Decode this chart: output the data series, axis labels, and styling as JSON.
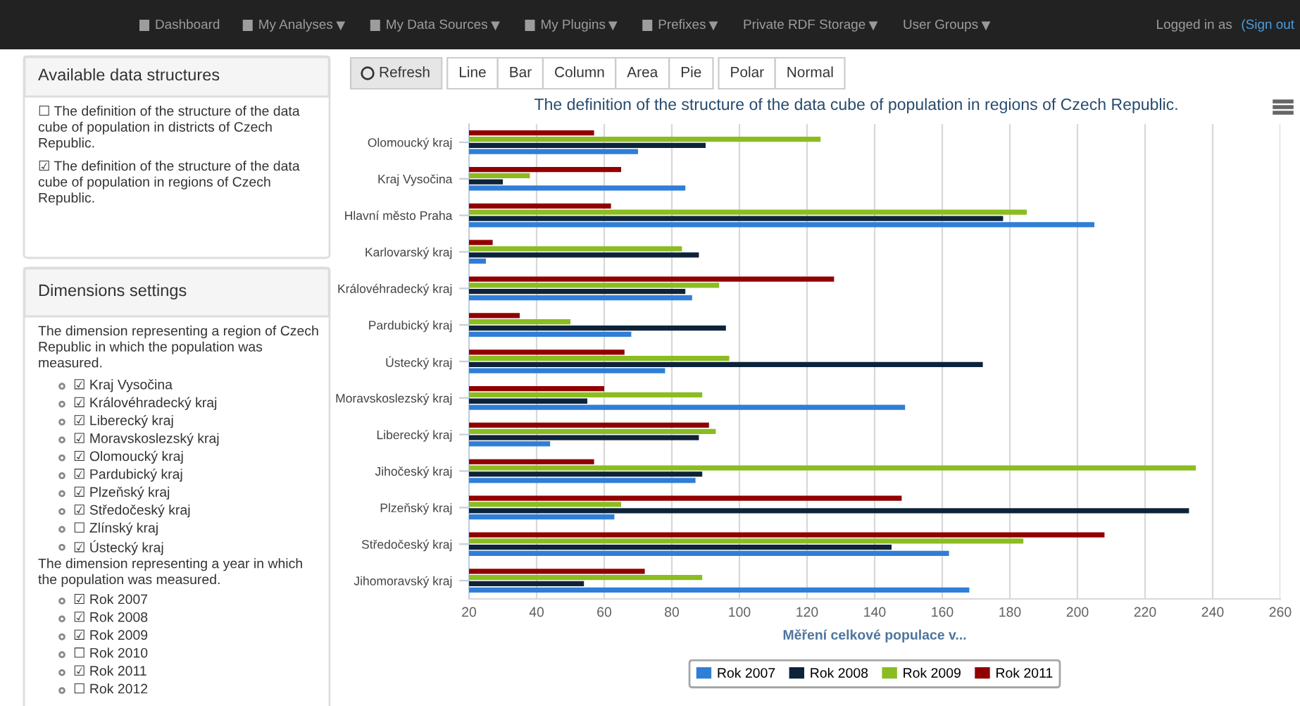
{
  "chart_data": [
    {
      "type": "other",
      "annotations": [
        "Dashboard",
        "My Analyses",
        "My Data Sources",
        "My Plugins",
        "Prefixes",
        "Private RDF Storage",
        "User Groups",
        "Logged in as",
        "(Sign out"
      ]
    },
    {
      "type": "other",
      "title": "Available data structures",
      "annotations": [
        "☐ The definition of the structure of the data\ncube of population in districts of Czech\nRepublic.",
        "☑ The definition of the structure of the data\ncube of population in regions of Czech\nRepublic."
      ]
    },
    {
      "type": "other",
      "title": "Dimensions settings",
      "annotations": [
        "The dimension representing a region of Czech\nRepublic in which the population was\nmeasured.",
        "☑ Kraj Vysočina",
        "☑ Královéhradecký kraj",
        "☑ Liberecký kraj",
        "☑ Moravskoslezský kraj",
        "☑ Olomoucký kraj",
        "☑ Pardubický kraj",
        "☑ Plzeňský kraj",
        "☑ Středočeský kraj",
        "☐ Zlínský kraj",
        "☑ Ústecký kraj",
        "The dimension representing a year in which\nthe population was measured.",
        "☑ Rok 2007",
        "☑ Rok 2008",
        "☑ Rok 2009",
        "☐ Rok 2010",
        "☑ Rok 2011",
        "☐ Rok 2012"
      ]
    },
    {
      "type": "other",
      "annotations": [
        "Refresh",
        "Line",
        "Bar",
        "Column",
        "Area",
        "Pie",
        "Polar",
        "Normal"
      ]
    },
    {
      "type": "bar",
      "orientation": "horizontal",
      "title": "The definition of the structure of the data cube of population in regions of Czech Republic.",
      "xlabel": "Měření celkové populace v...",
      "categories": [
        "Olomoucký kraj",
        "Kraj Vysočina",
        "Hlavní město Praha",
        "Karlovarský kraj",
        "Královéhradecký kraj",
        "Pardubický kraj",
        "Ústecký kraj",
        "Moravskoslezský kraj",
        "Liberecký kraj",
        "Jihočeský kraj",
        "Plzeňský kraj",
        "Středočeský kraj",
        "Jihomoravský kraj"
      ],
      "series": [
        {
          "name": "Rok 2007",
          "color": "#2f7ed8",
          "values": [
            70,
            84,
            205,
            25,
            86,
            68,
            78,
            149,
            44,
            87,
            63,
            162,
            168
          ]
        },
        {
          "name": "Rok 2008",
          "color": "#0d233a",
          "values": [
            90,
            30,
            178,
            88,
            84,
            96,
            172,
            55,
            88,
            89,
            233,
            145,
            54
          ]
        },
        {
          "name": "Rok 2009",
          "color": "#8bbc21",
          "values": [
            124,
            38,
            185,
            83,
            94,
            50,
            97,
            89,
            93,
            235,
            65,
            184,
            89
          ]
        },
        {
          "name": "Rok 2011",
          "color": "#910000",
          "values": [
            57,
            65,
            62,
            27,
            128,
            35,
            66,
            60,
            91,
            57,
            148,
            208,
            72
          ]
        }
      ],
      "xlim": [
        20,
        260
      ],
      "xticks": [
        20,
        40,
        60,
        80,
        100,
        120,
        140,
        160,
        180,
        200,
        220,
        240,
        260
      ],
      "grid": "x",
      "legend": "bottom"
    }
  ]
}
